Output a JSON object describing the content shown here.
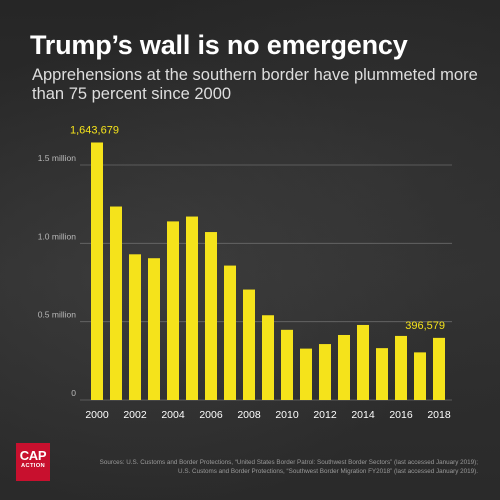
{
  "header": {
    "title": "Trump’s wall is no emergency",
    "subtitle": "Apprehensions at the southern border have plummeted more than 75 percent since 2000"
  },
  "logo": {
    "main": "CAP",
    "sub": "ACTION"
  },
  "sources": [
    "Sources: U.S. Customs and Border Protections, “United States Border Patrol: Southwest Border Sectors” (last accessed January 2019);",
    "U.S. Customs and Border Protections, “Southwest Border Migration FY2018” (last accessed January 2019)."
  ],
  "colors": {
    "bar": "#f5e31b",
    "grid": "#6a6a6a",
    "axis_text": "#b8b8b8",
    "year_text": "#ffffff"
  },
  "chart_data": {
    "type": "bar",
    "x": [
      2000,
      2001,
      2002,
      2003,
      2004,
      2005,
      2006,
      2007,
      2008,
      2009,
      2010,
      2011,
      2012,
      2013,
      2014,
      2015,
      2016,
      2017,
      2018
    ],
    "values": [
      1643679,
      1235000,
      930000,
      905000,
      1140000,
      1171000,
      1072000,
      858000,
      705000,
      541000,
      448000,
      328000,
      357000,
      415000,
      479000,
      331000,
      409000,
      304000,
      396579
    ],
    "xtick_labels": [
      "2000",
      "2002",
      "2004",
      "2006",
      "2008",
      "2010",
      "2012",
      "2014",
      "2016",
      "2018"
    ],
    "ytick_values": [
      0,
      500000,
      1000000,
      1500000
    ],
    "ytick_labels": [
      "0",
      "0.5 million",
      "1.0 million",
      "1.5 million"
    ],
    "ylim": [
      0,
      1750000
    ],
    "grid": true,
    "annotations": [
      {
        "x": 2000,
        "label": "1,643,679"
      },
      {
        "x": 2018,
        "label": "396,579"
      }
    ]
  }
}
